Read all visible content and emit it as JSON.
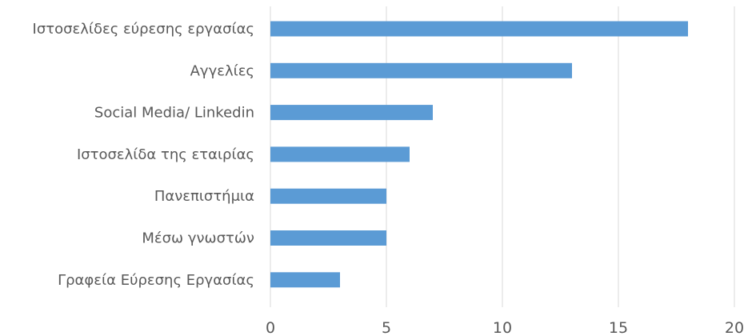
{
  "chart_data": {
    "type": "bar",
    "orientation": "horizontal",
    "title": "",
    "xlabel": "",
    "ylabel": "",
    "categories": [
      "Ιστοσελίδες εύρεσης εργασίας",
      "Αγγελίες",
      "Social Media/ Linkedin",
      "Ιστοσελίδα της εταιρίας",
      "Πανεπιστήμια",
      "Μέσω γνωστών",
      "Γραφεία Εύρεσης Εργασίας"
    ],
    "values": [
      18,
      13,
      7,
      6,
      5,
      5,
      3
    ],
    "xlim": [
      0,
      20
    ],
    "xticks": [
      "0",
      "5",
      "10",
      "15",
      "20"
    ],
    "grid": "vertical",
    "legend": "none",
    "colors": {
      "bar": "#5b9bd5",
      "grid": "#d9d9d9",
      "text": "#595959"
    }
  }
}
